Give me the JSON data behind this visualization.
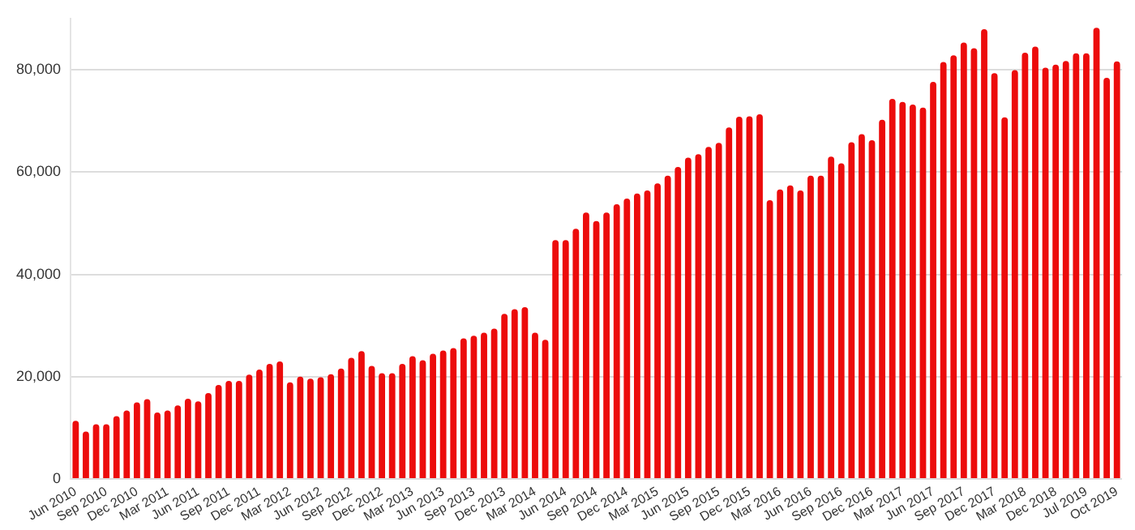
{
  "chart_data": {
    "type": "bar",
    "categories": [
      "Jun 2010",
      null,
      null,
      "Sep 2010",
      null,
      null,
      "Dec 2010",
      null,
      null,
      "Mar 2011",
      null,
      null,
      "Jun 2011",
      null,
      null,
      "Sep 2011",
      null,
      null,
      "Dec 2011",
      null,
      null,
      "Mar 2012",
      null,
      null,
      "Jun 2012",
      null,
      null,
      "Sep 2012",
      null,
      null,
      "Dec 2012",
      null,
      null,
      "Mar 2013",
      null,
      null,
      "Jun 2013",
      null,
      null,
      "Sep 2013",
      null,
      null,
      "Dec 2013",
      null,
      null,
      "Mar 2014",
      null,
      null,
      "Jun 2014",
      null,
      null,
      "Sep 2014",
      null,
      null,
      "Dec 2014",
      null,
      null,
      "Mar 2015",
      null,
      null,
      "Jun 2015",
      null,
      null,
      "Sep 2015",
      null,
      null,
      "Dec 2015",
      null,
      null,
      "Mar 2016",
      null,
      null,
      "Jun 2016",
      null,
      null,
      "Sep 2016",
      null,
      null,
      "Dec 2016",
      null,
      null,
      "Mar 2017",
      null,
      null,
      "Jun 2017",
      null,
      null,
      "Sep 2017",
      null,
      null,
      "Dec 2017",
      null,
      null,
      "Mar 2018",
      null,
      null,
      "Dec 2018",
      null,
      null,
      "Jul 2019",
      null,
      null,
      "Oct 2019"
    ],
    "values": [
      11400,
      9300,
      10700,
      10700,
      12300,
      13400,
      15000,
      15600,
      13000,
      13400,
      14400,
      15700,
      15200,
      16800,
      18400,
      19200,
      19200,
      20400,
      21400,
      22500,
      23000,
      18900,
      20000,
      19600,
      19900,
      20500,
      21600,
      23700,
      25000,
      22100,
      20700,
      20700,
      22500,
      24000,
      23200,
      24500,
      25100,
      25600,
      27500,
      28000,
      28600,
      29400,
      32300,
      33200,
      33600,
      28600,
      27200,
      46700,
      46700,
      48900,
      52100,
      50400,
      52100,
      53700,
      54800,
      55800,
      56400,
      57800,
      59300,
      61000,
      62800,
      63500,
      64900,
      65700,
      68700,
      70800,
      70900,
      71300,
      54500,
      56600,
      57400,
      56400,
      59300,
      59300,
      63000,
      61700,
      65800,
      67400,
      66200,
      70200,
      74300,
      73700,
      73200,
      72600,
      77600,
      81500,
      82800,
      85300,
      84200,
      87900,
      79300,
      70700,
      79900,
      83300,
      84500,
      80400,
      81000,
      81700,
      83200,
      83200,
      88200,
      78400,
      81600
    ],
    "color": "#ec0c0c",
    "ylim": [
      0,
      90000
    ],
    "yticks": [
      {
        "value": 0,
        "label": "0"
      },
      {
        "value": 20000,
        "label": "20,000"
      },
      {
        "value": 40000,
        "label": "40,000"
      },
      {
        "value": 60000,
        "label": "60,000"
      },
      {
        "value": 80000,
        "label": "80,000"
      }
    ],
    "grid": "y"
  }
}
